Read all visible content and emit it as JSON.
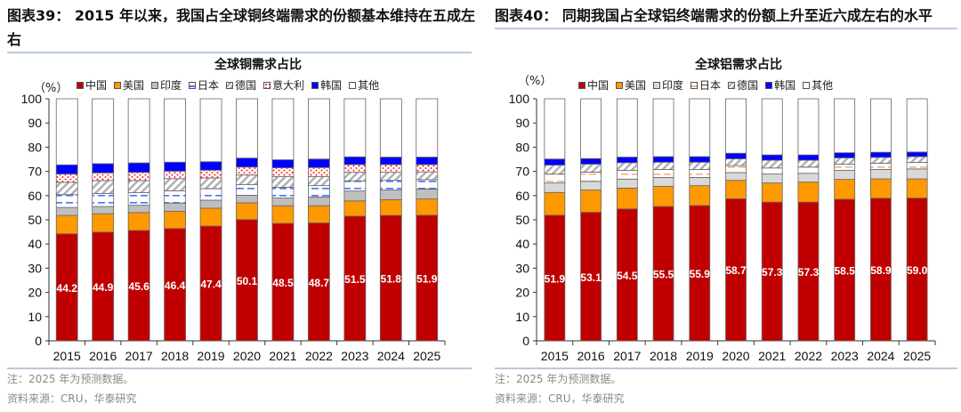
{
  "left": {
    "figure_title": "图表39：  2015 年以来，我国占全球铜终端需求的份额基本维持在五成左右",
    "note": "注：2025 年为预测数据。",
    "source": "资料来源：CRU，华泰研究"
  },
  "right": {
    "figure_title": "图表40：  同期我国占全球铝终端需求的份额上升至近六成左右的水平",
    "note": "注：2025 年为预测数据。",
    "source": "资料来源：CRU，华泰研究"
  },
  "chart_data": [
    {
      "type": "bar",
      "stacked": true,
      "title": "全球铜需求占比",
      "ylabel": "（%）",
      "ylim": [
        0,
        100
      ],
      "yticks": [
        0,
        10,
        20,
        30,
        40,
        50,
        60,
        70,
        80,
        90,
        100
      ],
      "legend_position": "top",
      "categories": [
        "2015",
        "2016",
        "2017",
        "2018",
        "2019",
        "2020",
        "2021",
        "2022",
        "2023",
        "2024",
        "2025"
      ],
      "series": [
        {
          "name": "中国",
          "color": "#c00000",
          "pattern": "solid",
          "values": [
            44.2,
            44.9,
            45.6,
            46.4,
            47.4,
            50.1,
            48.5,
            48.7,
            51.5,
            51.8,
            51.9
          ],
          "labeled": true
        },
        {
          "name": "美国",
          "color": "#ff9900",
          "pattern": "solid",
          "values": [
            7.6,
            7.6,
            7.4,
            7.1,
            7.4,
            6.9,
            7.3,
            7.1,
            6.3,
            6.5,
            6.7
          ]
        },
        {
          "name": "印度",
          "color": "#bfbfbf",
          "pattern": "solid",
          "values": [
            3.3,
            3.0,
            3.0,
            3.4,
            3.3,
            3.1,
            3.2,
            3.6,
            4.1,
            4.0,
            4.1
          ]
        },
        {
          "name": "日本",
          "color": "#4472ff",
          "pattern": "dash",
          "values": [
            5.3,
            5.4,
            5.2,
            5.1,
            4.8,
            4.4,
            4.4,
            4.7,
            4.2,
            4.0,
            3.9
          ]
        },
        {
          "name": "德国",
          "color": "#a6a6a6",
          "pattern": "hatch",
          "values": [
            5.1,
            5.3,
            5.0,
            5.0,
            4.4,
            4.0,
            4.4,
            3.8,
            3.5,
            3.3,
            3.2
          ]
        },
        {
          "name": "意大利",
          "color": "#ff2020",
          "pattern": "dots",
          "values": [
            3.4,
            3.2,
            3.4,
            3.1,
            3.2,
            3.3,
            3.7,
            3.7,
            3.2,
            3.2,
            3.0
          ]
        },
        {
          "name": "韩国",
          "color": "#0000ff",
          "pattern": "solid",
          "values": [
            3.8,
            3.8,
            3.9,
            3.7,
            3.5,
            3.7,
            3.3,
            3.5,
            3.2,
            3.1,
            3.1
          ]
        },
        {
          "name": "其他",
          "color": "#ffffff",
          "pattern": "solid",
          "values": [
            27.3,
            26.8,
            26.5,
            26.2,
            26.0,
            24.5,
            25.2,
            24.9,
            24.0,
            24.1,
            24.1
          ]
        }
      ]
    },
    {
      "type": "bar",
      "stacked": true,
      "title": "全球铝需求占比",
      "ylabel": "（%）",
      "ylim": [
        0,
        100
      ],
      "yticks": [
        0,
        10,
        20,
        30,
        40,
        50,
        60,
        70,
        80,
        90,
        100
      ],
      "legend_position": "top",
      "categories": [
        "2015",
        "2016",
        "2017",
        "2018",
        "2019",
        "2020",
        "2021",
        "2022",
        "2023",
        "2024",
        "2025"
      ],
      "series": [
        {
          "name": "中国",
          "color": "#c00000",
          "pattern": "solid",
          "values": [
            51.9,
            53.1,
            54.5,
            55.5,
            55.9,
            58.7,
            57.3,
            57.3,
            58.5,
            58.9,
            59.0
          ],
          "labeled": true
        },
        {
          "name": "美国",
          "color": "#ff9900",
          "pattern": "solid",
          "values": [
            9.4,
            9.2,
            8.6,
            8.3,
            8.2,
            7.6,
            7.9,
            8.3,
            8.2,
            8.0,
            7.9
          ]
        },
        {
          "name": "印度",
          "color": "#d9d9d9",
          "pattern": "solid",
          "values": [
            3.9,
            3.6,
            3.7,
            3.7,
            3.4,
            3.2,
            3.7,
            3.6,
            3.7,
            3.9,
            4.1
          ]
        },
        {
          "name": "日本",
          "color": "#f4b183",
          "pattern": "dash",
          "values": [
            3.7,
            3.8,
            3.6,
            3.3,
            3.3,
            2.9,
            2.5,
            2.6,
            2.6,
            2.6,
            2.7
          ]
        },
        {
          "name": "德国",
          "color": "#a6a6a6",
          "pattern": "hatch",
          "values": [
            3.7,
            3.3,
            3.2,
            3.0,
            3.0,
            2.8,
            3.2,
            2.8,
            2.6,
            2.4,
            2.4
          ]
        },
        {
          "name": "韩国",
          "color": "#0000ff",
          "pattern": "solid",
          "values": [
            2.5,
            2.3,
            2.3,
            2.3,
            2.3,
            2.3,
            2.2,
            2.2,
            2.1,
            2.1,
            1.9
          ]
        },
        {
          "name": "其他",
          "color": "#ffffff",
          "pattern": "solid",
          "values": [
            24.9,
            24.7,
            24.1,
            23.9,
            23.9,
            22.5,
            23.2,
            23.2,
            22.3,
            22.1,
            22.0
          ]
        }
      ]
    }
  ]
}
